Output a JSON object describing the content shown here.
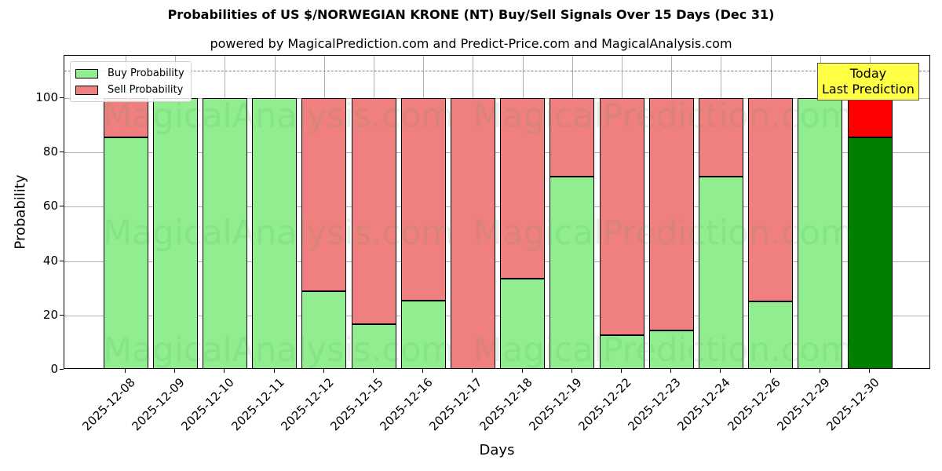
{
  "chart_data": {
    "type": "bar",
    "stacked": true,
    "title": "Probabilities of US $/NORWEGIAN KRONE (NT) Buy/Sell Signals Over 15 Days (Dec 31)",
    "subtitle": "powered by MagicalPrediction.com and Predict-Price.com and MagicalAnalysis.com",
    "xlabel": "Days",
    "ylabel": "Probability",
    "ylim": [
      0,
      115
    ],
    "yticks": [
      0,
      20,
      40,
      60,
      80,
      100
    ],
    "grid": true,
    "legend_position": "upper left",
    "categories": [
      "2025-12-08",
      "2025-12-09",
      "2025-12-10",
      "2025-12-11",
      "2025-12-12",
      "2025-12-15",
      "2025-12-16",
      "2025-12-17",
      "2025-12-18",
      "2025-12-19",
      "2025-12-22",
      "2025-12-23",
      "2025-12-24",
      "2025-12-26",
      "2025-12-29",
      "2025-12-30"
    ],
    "series": [
      {
        "name": "Buy Probability",
        "color": "#90ee90",
        "values": [
          85.5,
          100,
          100,
          100,
          28.8,
          16.8,
          25.3,
          0,
          33.4,
          71.0,
          12.6,
          14.4,
          71.2,
          25.1,
          100,
          85.5
        ]
      },
      {
        "name": "Sell Probability",
        "color": "#f08080",
        "values": [
          14.5,
          0,
          0,
          0,
          71.2,
          83.2,
          74.7,
          100,
          66.6,
          29.0,
          87.4,
          85.6,
          28.8,
          74.9,
          0,
          14.5
        ]
      }
    ],
    "highlight": {
      "index": 15,
      "buy_color": "#008000",
      "sell_color": "#ff0000"
    },
    "reference_line": {
      "y": 110,
      "style": "dashed",
      "color": "#808080"
    },
    "annotation": {
      "line1": "Today",
      "line2": "Last Prediction",
      "background": "#ffff44"
    }
  },
  "legend": {
    "buy_label": "Buy Probability",
    "sell_label": "Sell Probability"
  },
  "watermarks": [
    "MagicalAnalysis.com",
    "MagicalPrediction.com"
  ]
}
